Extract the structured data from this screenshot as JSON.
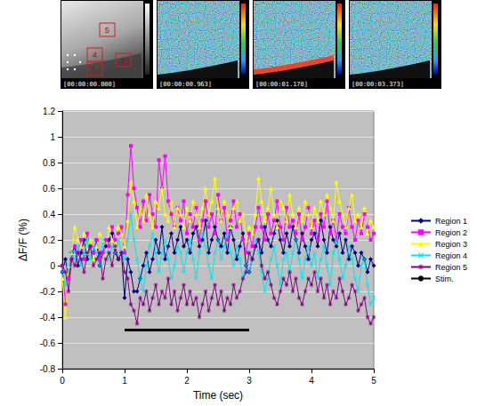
{
  "image_strip": {
    "panels": [
      {
        "timestamp": "[00:00:00.000]",
        "regions": [
          "5",
          "4",
          "3",
          "5"
        ]
      },
      {
        "timestamp": "[00:00:00.963]"
      },
      {
        "timestamp": "[00:00:01.178]"
      },
      {
        "timestamp": "[00:00:03.373]"
      }
    ]
  },
  "chart_data": {
    "type": "line",
    "x_label": "Time (sec)",
    "y_label": "ΔF/F (%)",
    "xlim": [
      0,
      5
    ],
    "xticks": [
      0,
      1,
      2,
      3,
      4,
      5
    ],
    "ylim": [
      -0.8,
      1.2
    ],
    "yticks": [
      -0.8,
      -0.6,
      -0.4,
      -0.2,
      0,
      0.2,
      0.4,
      0.6,
      0.8,
      1,
      1.2
    ],
    "grid": true,
    "legend": "right",
    "x": [
      0,
      0.05,
      0.1,
      0.15,
      0.2,
      0.25,
      0.3,
      0.35,
      0.4,
      0.45,
      0.5,
      0.55,
      0.6,
      0.65,
      0.7,
      0.75,
      0.8,
      0.85,
      0.9,
      0.95,
      1,
      1.05,
      1.1,
      1.15,
      1.2,
      1.25,
      1.3,
      1.35,
      1.4,
      1.45,
      1.5,
      1.55,
      1.6,
      1.65,
      1.7,
      1.75,
      1.8,
      1.85,
      1.9,
      1.95,
      2,
      2.05,
      2.1,
      2.15,
      2.2,
      2.25,
      2.3,
      2.35,
      2.4,
      2.45,
      2.5,
      2.55,
      2.6,
      2.65,
      2.7,
      2.75,
      2.8,
      2.85,
      2.9,
      2.95,
      3,
      3.05,
      3.1,
      3.15,
      3.2,
      3.25,
      3.3,
      3.35,
      3.4,
      3.45,
      3.5,
      3.55,
      3.6,
      3.65,
      3.7,
      3.75,
      3.8,
      3.85,
      3.9,
      3.95,
      4,
      4.05,
      4.1,
      4.15,
      4.2,
      4.25,
      4.3,
      4.35,
      4.4,
      4.45,
      4.5,
      4.55,
      4.6,
      4.65,
      4.7,
      4.75,
      4.8,
      4.85,
      4.9,
      4.95,
      5
    ],
    "series": [
      {
        "name": "Region 1",
        "color": "#000080",
        "marker": "diamond",
        "line_style": "solid",
        "values": [
          -0.05,
          0.05,
          -0.1,
          0.1,
          0.15,
          0.0,
          0.1,
          0.2,
          0.05,
          0.15,
          0.1,
          0.2,
          0.0,
          0.1,
          0.15,
          0.2,
          0.25,
          0.1,
          0.05,
          0.1,
          -0.25,
          0.05,
          -0.05,
          -0.2,
          -0.2,
          -0.1,
          0.0,
          0.1,
          -0.05,
          0.05,
          0.2,
          0.1,
          0.3,
          0.05,
          0.15,
          0.25,
          0.1,
          0.2,
          0.3,
          0.15,
          0.2,
          0.1,
          0.25,
          0.3,
          0.15,
          0.2,
          0.35,
          0.1,
          0.2,
          0.3,
          0.2,
          0.15,
          0.25,
          0.1,
          0.3,
          0.2,
          0.05,
          0.15,
          0.25,
          0.0,
          -0.05,
          0.05,
          0.15,
          0.2,
          0.1,
          0.3,
          0.2,
          0.15,
          0.25,
          0.35,
          0.2,
          0.1,
          0.25,
          0.15,
          0.3,
          0.2,
          0.1,
          0.25,
          0.15,
          0.05,
          0.2,
          0.25,
          0.15,
          0.35,
          0.2,
          0.1,
          0.3,
          0.2,
          0.15,
          0.25,
          0.1,
          0.2,
          0.05,
          0.15,
          0.1,
          0.0,
          0.1,
          0.05,
          -0.05,
          0.05,
          0.0
        ]
      },
      {
        "name": "Region 2",
        "color": "#ff00ff",
        "marker": "square",
        "line_style": "solid",
        "values": [
          0.0,
          -0.3,
          -0.1,
          0.05,
          0.15,
          0.1,
          0.2,
          0.05,
          0.25,
          0.15,
          0.1,
          0.2,
          0.05,
          0.1,
          0.2,
          0.15,
          0.3,
          0.2,
          0.25,
          0.3,
          0.1,
          0.55,
          0.93,
          0.6,
          0.45,
          0.3,
          0.5,
          0.35,
          0.55,
          0.4,
          0.3,
          0.82,
          0.6,
          0.85,
          0.5,
          0.4,
          0.3,
          0.45,
          0.35,
          0.5,
          0.25,
          0.4,
          0.3,
          0.45,
          0.2,
          0.35,
          0.5,
          0.3,
          0.4,
          0.25,
          0.55,
          0.35,
          0.45,
          0.2,
          0.35,
          0.5,
          0.3,
          0.4,
          0.2,
          0.1,
          0.25,
          0.15,
          0.3,
          0.45,
          0.3,
          0.2,
          0.4,
          0.25,
          0.35,
          0.5,
          0.3,
          0.2,
          0.45,
          0.3,
          0.35,
          0.25,
          0.4,
          0.2,
          0.3,
          0.45,
          0.25,
          0.35,
          0.2,
          0.4,
          0.3,
          0.5,
          0.25,
          0.35,
          0.2,
          0.4,
          0.3,
          0.25,
          0.45,
          0.3,
          0.2,
          0.35,
          0.25,
          0.4,
          0.3,
          0.2,
          0.25
        ]
      },
      {
        "name": "Region 3",
        "color": "#ffff00",
        "marker": "triangle",
        "line_style": "solid",
        "values": [
          -0.1,
          -0.4,
          0.0,
          0.1,
          0.3,
          0.2,
          0.15,
          0.25,
          0.1,
          0.2,
          0.05,
          0.15,
          0.25,
          0.2,
          0.1,
          0.3,
          0.2,
          0.15,
          0.3,
          0.25,
          0.15,
          0.35,
          0.65,
          0.5,
          0.3,
          0.45,
          0.35,
          0.55,
          0.4,
          0.3,
          0.5,
          0.45,
          0.6,
          0.4,
          0.35,
          0.5,
          0.3,
          0.45,
          0.4,
          0.3,
          0.45,
          0.35,
          0.5,
          0.4,
          0.3,
          0.45,
          0.6,
          0.4,
          0.5,
          0.68,
          0.45,
          0.35,
          0.5,
          0.4,
          0.3,
          0.45,
          0.5,
          0.35,
          0.4,
          0.2,
          0.3,
          0.25,
          0.4,
          0.68,
          0.5,
          0.35,
          0.45,
          0.6,
          0.4,
          0.3,
          0.5,
          0.45,
          0.35,
          0.55,
          0.4,
          0.3,
          0.45,
          0.35,
          0.5,
          0.4,
          0.3,
          0.45,
          0.35,
          0.5,
          0.4,
          0.55,
          0.45,
          0.35,
          0.65,
          0.5,
          0.4,
          0.3,
          0.45,
          0.55,
          0.35,
          0.4,
          0.3,
          0.45,
          0.25,
          0.35,
          0.3
        ]
      },
      {
        "name": "Region 4",
        "color": "#00e5ee",
        "marker": "x",
        "line_style": "solid",
        "values": [
          -0.05,
          -0.15,
          0.0,
          0.1,
          0.05,
          0.15,
          0.0,
          0.1,
          0.2,
          0.05,
          0.15,
          0.1,
          0.0,
          0.2,
          0.1,
          0.05,
          0.15,
          0.1,
          0.2,
          0.1,
          0.05,
          0.2,
          0.4,
          0.2,
          0.05,
          -0.1,
          -0.2,
          0.0,
          0.15,
          0.25,
          0.1,
          -0.05,
          0.1,
          0.2,
          0.05,
          -0.1,
          0.0,
          0.15,
          0.1,
          -0.05,
          0.1,
          0.2,
          0.05,
          -0.1,
          0.1,
          0.25,
          0.15,
          0.0,
          -0.1,
          0.1,
          0.2,
          0.05,
          0.15,
          0.25,
          0.1,
          0.0,
          0.15,
          0.05,
          -0.1,
          0.0,
          -0.05,
          0.05,
          0.2,
          0.1,
          -0.05,
          -0.2,
          -0.1,
          0.05,
          0.15,
          0.0,
          -0.15,
          0.05,
          0.1,
          -0.05,
          0.1,
          0.2,
          0.05,
          -0.1,
          0.05,
          0.15,
          0.0,
          0.1,
          -0.1,
          0.05,
          0.15,
          0.0,
          -0.15,
          0.1,
          0.2,
          0.05,
          -0.1,
          0.0,
          0.15,
          0.05,
          -0.1,
          -0.2,
          0.0,
          0.05,
          -0.15,
          -0.3,
          -0.25
        ]
      },
      {
        "name": "Region 5",
        "color": "#800080",
        "marker": "star",
        "line_style": "solid",
        "values": [
          0.0,
          -0.05,
          -0.2,
          0.05,
          0.0,
          0.1,
          0.05,
          -0.05,
          0.1,
          0.15,
          0.0,
          0.05,
          0.1,
          -0.1,
          0.05,
          0.1,
          0.0,
          0.15,
          0.05,
          0.1,
          -0.05,
          -0.1,
          -0.3,
          -0.35,
          -0.45,
          -0.25,
          -0.3,
          -0.2,
          -0.35,
          -0.25,
          -0.15,
          -0.3,
          -0.2,
          -0.25,
          -0.1,
          -0.3,
          -0.2,
          -0.35,
          -0.25,
          -0.15,
          -0.3,
          -0.2,
          -0.3,
          -0.25,
          -0.4,
          -0.3,
          -0.2,
          -0.35,
          -0.25,
          -0.15,
          -0.3,
          -0.2,
          -0.35,
          -0.25,
          -0.3,
          -0.15,
          -0.25,
          -0.2,
          -0.1,
          -0.05,
          0.1,
          0.05,
          0.15,
          0.2,
          0.0,
          -0.1,
          -0.05,
          -0.15,
          -0.25,
          -0.3,
          -0.2,
          -0.1,
          -0.15,
          -0.05,
          -0.2,
          -0.1,
          -0.25,
          -0.3,
          -0.2,
          -0.1,
          -0.15,
          -0.05,
          -0.2,
          -0.1,
          -0.25,
          -0.15,
          -0.3,
          -0.2,
          -0.25,
          -0.1,
          -0.2,
          -0.3,
          -0.25,
          -0.15,
          -0.2,
          -0.35,
          -0.3,
          -0.25,
          -0.4,
          -0.45,
          -0.4
        ]
      },
      {
        "name": "Stim.",
        "color": "#000000",
        "marker": "none",
        "line_style": "solid",
        "x": [
          1,
          3
        ],
        "values": [
          -0.5,
          -0.5
        ]
      }
    ]
  }
}
